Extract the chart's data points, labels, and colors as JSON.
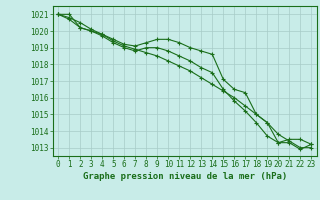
{
  "line1": {
    "x": [
      0,
      1,
      2,
      3,
      4,
      5,
      6,
      7,
      8,
      9,
      10,
      11,
      12,
      13,
      14,
      15,
      16,
      17,
      18,
      19,
      20,
      21,
      22,
      23
    ],
    "y": [
      1021.0,
      1021.0,
      1020.2,
      1020.0,
      1019.8,
      1019.5,
      1019.2,
      1019.1,
      1019.3,
      1019.5,
      1019.5,
      1019.3,
      1019.0,
      1018.8,
      1018.6,
      1017.1,
      1016.5,
      1016.3,
      1015.0,
      1014.5,
      1013.3,
      1013.3,
      1012.9,
      1013.2
    ]
  },
  "line2": {
    "x": [
      0,
      1,
      2,
      3,
      4,
      5,
      6,
      7,
      8,
      9,
      10,
      11,
      12,
      13,
      14,
      15,
      16,
      17,
      18,
      19,
      20,
      21,
      22,
      23
    ],
    "y": [
      1021.0,
      1020.7,
      1020.2,
      1020.0,
      1019.7,
      1019.3,
      1019.0,
      1018.8,
      1019.0,
      1019.0,
      1018.8,
      1018.5,
      1018.2,
      1017.8,
      1017.5,
      1016.5,
      1015.8,
      1015.2,
      1014.5,
      1013.7,
      1013.3,
      1013.5,
      1013.5,
      1013.2
    ]
  },
  "line3": {
    "x": [
      0,
      1,
      2,
      3,
      4,
      5,
      6,
      7,
      8,
      9,
      10,
      11,
      12,
      13,
      14,
      15,
      16,
      17,
      18,
      19,
      20,
      21,
      22,
      23
    ],
    "y": [
      1021.0,
      1020.8,
      1020.5,
      1020.1,
      1019.8,
      1019.4,
      1019.1,
      1018.9,
      1018.7,
      1018.5,
      1018.2,
      1017.9,
      1017.6,
      1017.2,
      1016.8,
      1016.4,
      1016.0,
      1015.5,
      1015.0,
      1014.5,
      1013.8,
      1013.4,
      1013.0,
      1013.0
    ]
  },
  "xlim": [
    -0.5,
    23.5
  ],
  "ylim": [
    1012.5,
    1021.5
  ],
  "yticks": [
    1013,
    1014,
    1015,
    1016,
    1017,
    1018,
    1019,
    1020,
    1021
  ],
  "xticks": [
    0,
    1,
    2,
    3,
    4,
    5,
    6,
    7,
    8,
    9,
    10,
    11,
    12,
    13,
    14,
    15,
    16,
    17,
    18,
    19,
    20,
    21,
    22,
    23
  ],
  "xlabel": "Graphe pression niveau de la mer (hPa)",
  "line_color": "#1a6e1a",
  "bg_color": "#c8ece8",
  "grid_color": "#a8ccc8",
  "text_color": "#1a6e1a",
  "marker": "+",
  "markersize": 3.5,
  "linewidth": 0.8,
  "xlabel_fontsize": 6.5,
  "tick_fontsize": 5.5
}
